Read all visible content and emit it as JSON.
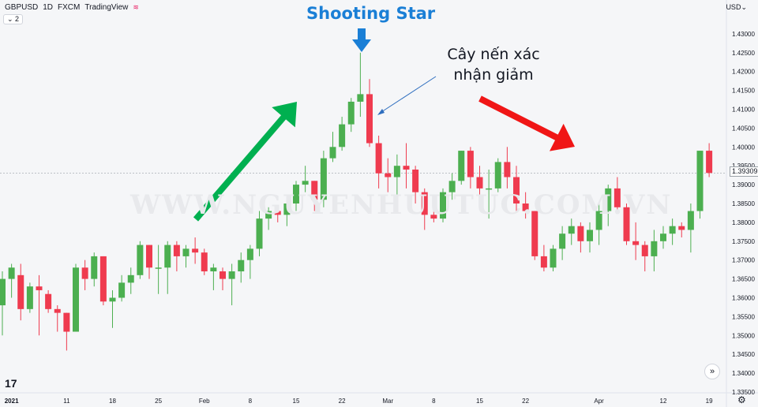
{
  "header": {
    "symbol": "GBPUSD",
    "interval": "1D",
    "source": "FXCM",
    "platform": "TradingView",
    "sub": "⌄ 2",
    "currency": "USD"
  },
  "annotations": {
    "pattern_title": "Shooting Star",
    "confirm_text": "Cây nến xác nhận giảm",
    "watermark": "WWW.NGUYENHUUTUC.COM.VN"
  },
  "colors": {
    "up": "#4caf50",
    "down": "#ef3b4f",
    "uptrend_arrow": "#00b050",
    "downtrend_arrow": "#f01616",
    "shooting_star_arrow": "#1a7fd6",
    "confirm_pointer": "#2f6fbf"
  },
  "chart_data": {
    "type": "candlestick",
    "ylim": [
      1.335,
      1.435
    ],
    "ytick_labels": [
      "1.43000",
      "1.42500",
      "1.42000",
      "1.41500",
      "1.41000",
      "1.40500",
      "1.40000",
      "1.39500",
      "1.39000",
      "1.38500",
      "1.38000",
      "1.37500",
      "1.37000",
      "1.36500",
      "1.36000",
      "1.35500",
      "1.35000",
      "1.34500",
      "1.34000",
      "1.33500"
    ],
    "yticks": [
      1.43,
      1.425,
      1.42,
      1.415,
      1.41,
      1.405,
      1.4,
      1.395,
      1.39,
      1.385,
      1.38,
      1.375,
      1.37,
      1.365,
      1.36,
      1.355,
      1.35,
      1.345,
      1.34,
      1.335
    ],
    "xtick_labels": [
      "2021",
      "11",
      "18",
      "25",
      "Feb",
      "8",
      "15",
      "22",
      "Mar",
      "8",
      "15",
      "22",
      "Apr",
      "12",
      "19"
    ],
    "xtick_index": [
      1,
      7,
      12,
      17,
      22,
      27,
      32,
      37,
      42,
      47,
      52,
      57,
      65,
      72,
      77
    ],
    "last_price_label": "1.39309",
    "candles": [
      {
        "o": 1.358,
        "h": 1.367,
        "l": 1.35,
        "c": 1.365
      },
      {
        "o": 1.365,
        "h": 1.369,
        "l": 1.36,
        "c": 1.368
      },
      {
        "o": 1.366,
        "h": 1.369,
        "l": 1.354,
        "c": 1.357
      },
      {
        "o": 1.357,
        "h": 1.364,
        "l": 1.356,
        "c": 1.363
      },
      {
        "o": 1.363,
        "h": 1.366,
        "l": 1.35,
        "c": 1.362
      },
      {
        "o": 1.361,
        "h": 1.362,
        "l": 1.356,
        "c": 1.357
      },
      {
        "o": 1.357,
        "h": 1.358,
        "l": 1.351,
        "c": 1.356
      },
      {
        "o": 1.356,
        "h": 1.356,
        "l": 1.346,
        "c": 1.351
      },
      {
        "o": 1.351,
        "h": 1.369,
        "l": 1.351,
        "c": 1.368
      },
      {
        "o": 1.368,
        "h": 1.37,
        "l": 1.362,
        "c": 1.365
      },
      {
        "o": 1.365,
        "h": 1.372,
        "l": 1.363,
        "c": 1.371
      },
      {
        "o": 1.371,
        "h": 1.371,
        "l": 1.358,
        "c": 1.359
      },
      {
        "o": 1.359,
        "h": 1.362,
        "l": 1.352,
        "c": 1.36
      },
      {
        "o": 1.36,
        "h": 1.366,
        "l": 1.359,
        "c": 1.364
      },
      {
        "o": 1.364,
        "h": 1.368,
        "l": 1.361,
        "c": 1.366
      },
      {
        "o": 1.366,
        "h": 1.375,
        "l": 1.365,
        "c": 1.374
      },
      {
        "o": 1.374,
        "h": 1.374,
        "l": 1.365,
        "c": 1.368
      },
      {
        "o": 1.368,
        "h": 1.374,
        "l": 1.361,
        "c": 1.368
      },
      {
        "o": 1.368,
        "h": 1.375,
        "l": 1.361,
        "c": 1.374
      },
      {
        "o": 1.374,
        "h": 1.375,
        "l": 1.367,
        "c": 1.371
      },
      {
        "o": 1.371,
        "h": 1.374,
        "l": 1.368,
        "c": 1.373
      },
      {
        "o": 1.373,
        "h": 1.376,
        "l": 1.369,
        "c": 1.372
      },
      {
        "o": 1.372,
        "h": 1.373,
        "l": 1.366,
        "c": 1.367
      },
      {
        "o": 1.367,
        "h": 1.369,
        "l": 1.362,
        "c": 1.368
      },
      {
        "o": 1.367,
        "h": 1.368,
        "l": 1.362,
        "c": 1.365
      },
      {
        "o": 1.365,
        "h": 1.369,
        "l": 1.358,
        "c": 1.367
      },
      {
        "o": 1.367,
        "h": 1.372,
        "l": 1.364,
        "c": 1.37
      },
      {
        "o": 1.37,
        "h": 1.374,
        "l": 1.365,
        "c": 1.373
      },
      {
        "o": 1.373,
        "h": 1.383,
        "l": 1.371,
        "c": 1.381
      },
      {
        "o": 1.381,
        "h": 1.384,
        "l": 1.378,
        "c": 1.383
      },
      {
        "o": 1.383,
        "h": 1.384,
        "l": 1.38,
        "c": 1.382
      },
      {
        "o": 1.382,
        "h": 1.386,
        "l": 1.379,
        "c": 1.385
      },
      {
        "o": 1.385,
        "h": 1.391,
        "l": 1.383,
        "c": 1.39
      },
      {
        "o": 1.39,
        "h": 1.395,
        "l": 1.388,
        "c": 1.391
      },
      {
        "o": 1.391,
        "h": 1.391,
        "l": 1.383,
        "c": 1.386
      },
      {
        "o": 1.386,
        "h": 1.399,
        "l": 1.384,
        "c": 1.397
      },
      {
        "o": 1.397,
        "h": 1.404,
        "l": 1.396,
        "c": 1.4
      },
      {
        "o": 1.4,
        "h": 1.408,
        "l": 1.399,
        "c": 1.406
      },
      {
        "o": 1.406,
        "h": 1.413,
        "l": 1.404,
        "c": 1.412
      },
      {
        "o": 1.412,
        "h": 1.425,
        "l": 1.408,
        "c": 1.414
      },
      {
        "o": 1.414,
        "h": 1.418,
        "l": 1.4,
        "c": 1.401
      },
      {
        "o": 1.401,
        "h": 1.403,
        "l": 1.389,
        "c": 1.393
      },
      {
        "o": 1.393,
        "h": 1.397,
        "l": 1.388,
        "c": 1.392
      },
      {
        "o": 1.392,
        "h": 1.398,
        "l": 1.386,
        "c": 1.395
      },
      {
        "o": 1.395,
        "h": 1.401,
        "l": 1.389,
        "c": 1.394
      },
      {
        "o": 1.394,
        "h": 1.395,
        "l": 1.385,
        "c": 1.388
      },
      {
        "o": 1.388,
        "h": 1.389,
        "l": 1.378,
        "c": 1.382
      },
      {
        "o": 1.382,
        "h": 1.383,
        "l": 1.38,
        "c": 1.381
      },
      {
        "o": 1.381,
        "h": 1.389,
        "l": 1.38,
        "c": 1.388
      },
      {
        "o": 1.388,
        "h": 1.393,
        "l": 1.386,
        "c": 1.391
      },
      {
        "o": 1.391,
        "h": 1.399,
        "l": 1.39,
        "c": 1.399
      },
      {
        "o": 1.399,
        "h": 1.4,
        "l": 1.389,
        "c": 1.392
      },
      {
        "o": 1.392,
        "h": 1.395,
        "l": 1.386,
        "c": 1.389
      },
      {
        "o": 1.389,
        "h": 1.394,
        "l": 1.381,
        "c": 1.389
      },
      {
        "o": 1.389,
        "h": 1.397,
        "l": 1.388,
        "c": 1.396
      },
      {
        "o": 1.396,
        "h": 1.4,
        "l": 1.389,
        "c": 1.392
      },
      {
        "o": 1.392,
        "h": 1.395,
        "l": 1.383,
        "c": 1.385
      },
      {
        "o": 1.385,
        "h": 1.388,
        "l": 1.381,
        "c": 1.383
      },
      {
        "o": 1.383,
        "h": 1.383,
        "l": 1.37,
        "c": 1.371
      },
      {
        "o": 1.371,
        "h": 1.374,
        "l": 1.367,
        "c": 1.368
      },
      {
        "o": 1.368,
        "h": 1.374,
        "l": 1.367,
        "c": 1.373
      },
      {
        "o": 1.373,
        "h": 1.379,
        "l": 1.37,
        "c": 1.377
      },
      {
        "o": 1.377,
        "h": 1.381,
        "l": 1.374,
        "c": 1.379
      },
      {
        "o": 1.379,
        "h": 1.38,
        "l": 1.372,
        "c": 1.375
      },
      {
        "o": 1.375,
        "h": 1.38,
        "l": 1.372,
        "c": 1.378
      },
      {
        "o": 1.378,
        "h": 1.385,
        "l": 1.374,
        "c": 1.383
      },
      {
        "o": 1.383,
        "h": 1.39,
        "l": 1.379,
        "c": 1.389
      },
      {
        "o": 1.389,
        "h": 1.392,
        "l": 1.383,
        "c": 1.384
      },
      {
        "o": 1.384,
        "h": 1.385,
        "l": 1.374,
        "c": 1.375
      },
      {
        "o": 1.375,
        "h": 1.38,
        "l": 1.37,
        "c": 1.374
      },
      {
        "o": 1.374,
        "h": 1.375,
        "l": 1.367,
        "c": 1.371
      },
      {
        "o": 1.371,
        "h": 1.378,
        "l": 1.367,
        "c": 1.375
      },
      {
        "o": 1.375,
        "h": 1.379,
        "l": 1.373,
        "c": 1.377
      },
      {
        "o": 1.377,
        "h": 1.381,
        "l": 1.374,
        "c": 1.379
      },
      {
        "o": 1.379,
        "h": 1.38,
        "l": 1.376,
        "c": 1.378
      },
      {
        "o": 1.378,
        "h": 1.385,
        "l": 1.372,
        "c": 1.383
      },
      {
        "o": 1.383,
        "h": 1.399,
        "l": 1.381,
        "c": 1.399
      },
      {
        "o": 1.399,
        "h": 1.401,
        "l": 1.392,
        "c": 1.3931
      }
    ]
  }
}
